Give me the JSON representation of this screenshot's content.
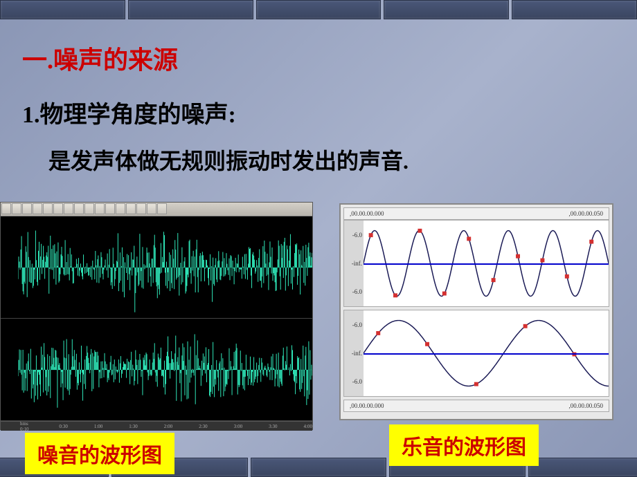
{
  "heading": "一.噪声的来源",
  "subheading": "1.物理学角度的噪声:",
  "bodytext": "是发声体做无规则振动时发出的声音.",
  "caption_noise": "噪音的波形图",
  "caption_music": "乐音的波形图",
  "colors": {
    "heading": "#cc0000",
    "text": "#000000",
    "caption_bg": "#ffff00",
    "caption_fg": "#cc0000",
    "noise_wave": "#2fe6b8",
    "noise_bg": "#000000",
    "sine_line": "#1a1a55",
    "sine_marker": "#d43030",
    "centerline": "#0000cc",
    "brick": "#3a4560"
  },
  "noise": {
    "tracks": 2,
    "ruler_ticks": [
      "hms 0:10",
      "0:30",
      "1:00",
      "1:30",
      "2:00",
      "2:30",
      "3:00",
      "3:30",
      "4:00"
    ],
    "amplitude_envelope": "irregular random 0.2–0.9",
    "sample_bars": 420
  },
  "music": {
    "ruler_labels": [
      ",00.00.00.000",
      ",00.00.00.050"
    ],
    "y_ticks": [
      "-6.0",
      "-inf.",
      "-6.0"
    ],
    "track1": {
      "type": "sine",
      "cycles": 5.5,
      "amplitude": 0.85,
      "marker_count": 10,
      "marker_color": "#d43030",
      "line_color": "#1a1a55"
    },
    "track2": {
      "type": "sine",
      "cycles": 1.75,
      "amplitude": 0.85,
      "marker_count": 5,
      "marker_color": "#d43030",
      "line_color": "#1a1a55"
    }
  }
}
